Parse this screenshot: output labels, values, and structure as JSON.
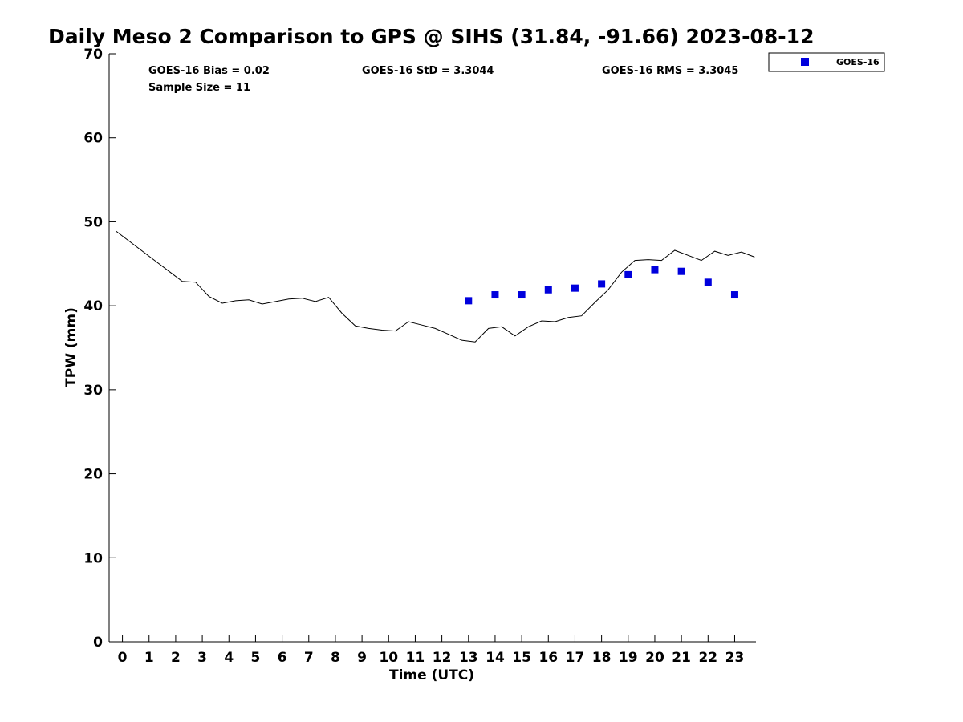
{
  "chart_data": {
    "type": "scatter",
    "title": "Daily Meso 2 Comparison to GPS @ SIHS (31.84, -91.66) 2023-08-12",
    "xlabel": "Time (UTC)",
    "ylabel": "TPW (mm)",
    "xlim": [
      -0.5,
      23.8
    ],
    "ylim": [
      0,
      70
    ],
    "x_ticks": [
      0,
      1,
      2,
      3,
      4,
      5,
      6,
      7,
      8,
      9,
      10,
      11,
      12,
      13,
      14,
      15,
      16,
      17,
      18,
      19,
      20,
      21,
      22,
      23
    ],
    "x_tick_labels": [
      "0",
      "1",
      "2",
      "3",
      "4",
      "5",
      "6",
      "7",
      "8",
      "9",
      "10",
      "11",
      "12",
      "13",
      "14",
      "15",
      "16",
      "17",
      "18",
      "19",
      "20",
      "21",
      "22",
      "23"
    ],
    "y_ticks": [
      0,
      10,
      20,
      30,
      40,
      50,
      60,
      70
    ],
    "y_tick_labels": [
      "0",
      "10",
      "20",
      "30",
      "40",
      "50",
      "60",
      "70"
    ],
    "grid": false,
    "legend_position": "top-right, outside plot",
    "stats": {
      "bias": "GOES-16 Bias = 0.02",
      "sample_size": "Sample Size = 11",
      "std": "GOES-16 StD = 3.3044",
      "rms": "GOES-16 RMS = 3.3045"
    },
    "series": [
      {
        "kind": "line",
        "color": "#000000",
        "x": [
          -0.25,
          0.25,
          0.75,
          1.25,
          1.75,
          2.25,
          2.75,
          3.25,
          3.75,
          4.25,
          4.75,
          5.25,
          5.75,
          6.25,
          6.75,
          7.25,
          7.75,
          8.25,
          8.75,
          9.25,
          9.75,
          10.25,
          10.75,
          11.25,
          11.75,
          12.25,
          12.75,
          13.25,
          13.75,
          14.25,
          14.75,
          15.25,
          15.75,
          16.25,
          16.75,
          17.25,
          17.75,
          18.25,
          18.75,
          19.25,
          19.75,
          20.25,
          20.75,
          21.25,
          21.75,
          22.25,
          22.75,
          23.25,
          23.75
        ],
        "y": [
          48.9,
          47.7,
          46.5,
          45.3,
          44.1,
          42.9,
          42.8,
          41.1,
          40.3,
          40.6,
          40.7,
          40.2,
          40.5,
          40.8,
          40.9,
          40.5,
          41.0,
          39.1,
          37.6,
          37.3,
          37.1,
          37.0,
          38.1,
          37.7,
          37.3,
          36.6,
          35.9,
          35.7,
          37.3,
          37.5,
          36.4,
          37.5,
          38.2,
          38.1,
          38.6,
          38.8,
          40.4,
          41.9,
          44.0,
          45.4,
          45.5,
          45.4,
          46.6,
          46.0,
          45.4,
          46.5,
          46.0,
          46.4,
          45.8
        ]
      },
      {
        "name": "GOES-16",
        "kind": "scatter",
        "marker": "square",
        "color": "#0000dd",
        "x": [
          13,
          14,
          15,
          16,
          17,
          18,
          19,
          20,
          21,
          22,
          23
        ],
        "y": [
          40.6,
          41.3,
          41.3,
          41.9,
          42.1,
          42.6,
          43.7,
          44.3,
          44.1,
          42.8,
          41.3
        ]
      }
    ]
  }
}
